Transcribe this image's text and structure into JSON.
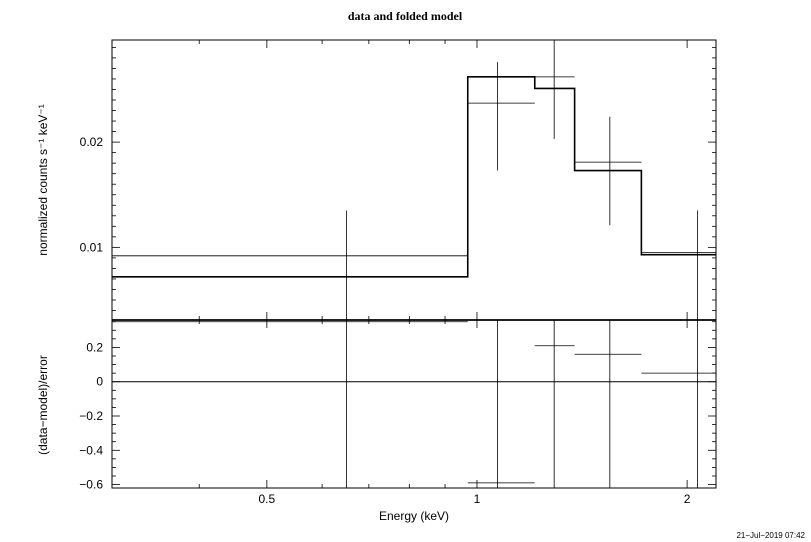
{
  "chart_data": [
    {
      "type": "step",
      "title": "data and folded model",
      "xlabel": "Energy (keV)",
      "ylabel": "normalized counts s⁻¹ keV⁻¹",
      "x_scale": "log",
      "xlim": [
        0.3,
        2.2
      ],
      "ylim": [
        0.0031,
        0.0297
      ],
      "y_ticks": [
        0.01,
        0.02
      ],
      "y_tick_labels": [
        "0.01",
        "0.02"
      ],
      "model": {
        "bins": [
          [
            0.3,
            0.97
          ],
          [
            0.97,
            1.21
          ],
          [
            1.21,
            1.38
          ],
          [
            1.38,
            1.72
          ],
          [
            1.72,
            2.2
          ]
        ],
        "values": [
          0.0072,
          0.0262,
          0.0251,
          0.0173,
          0.0093
        ]
      },
      "data": {
        "points": [
          {
            "x": 0.65,
            "xlo": 0.3,
            "xhi": 0.97,
            "y": 0.0092,
            "ylo": 0.0,
            "yhi": 0.0135
          },
          {
            "x": 1.07,
            "xlo": 0.97,
            "xhi": 1.21,
            "y": 0.0237,
            "ylo": 0.0173,
            "yhi": 0.0276
          },
          {
            "x": 1.29,
            "xlo": 1.21,
            "xhi": 1.38,
            "y": 0.0262,
            "ylo": 0.0203,
            "yhi": 0.0299
          },
          {
            "x": 1.55,
            "xlo": 1.38,
            "xhi": 1.72,
            "y": 0.0181,
            "ylo": 0.0121,
            "yhi": 0.0224
          },
          {
            "x": 2.07,
            "xlo": 1.72,
            "xhi": 2.2,
            "y": 0.0095,
            "ylo": 0.0,
            "yhi": 0.0135
          }
        ]
      }
    },
    {
      "type": "scatter",
      "xlabel": "Energy (keV)",
      "ylabel": "(data−model)/error",
      "x_scale": "log",
      "xlim": [
        0.3,
        2.2
      ],
      "ylim": [
        -0.62,
        0.36
      ],
      "x_ticks": [
        0.5,
        1,
        2
      ],
      "x_tick_labels": [
        "0.5",
        "1",
        "2"
      ],
      "y_ticks": [
        -0.6,
        -0.4,
        -0.2,
        0,
        0.2
      ],
      "y_tick_labels": [
        "−0.6",
        "−0.4",
        "−0.2",
        "0",
        "0.2"
      ],
      "zero_line": 0,
      "points": [
        {
          "x": 0.65,
          "xlo": 0.3,
          "xhi": 0.97,
          "y": 0.35,
          "ylo": -0.62,
          "yhi": 0.36
        },
        {
          "x": 1.07,
          "xlo": 0.97,
          "xhi": 1.21,
          "y": -0.59,
          "ylo": -0.62,
          "yhi": 0.36
        },
        {
          "x": 1.29,
          "xlo": 1.21,
          "xhi": 1.38,
          "y": 0.21,
          "ylo": -0.62,
          "yhi": 0.36
        },
        {
          "x": 1.55,
          "xlo": 1.38,
          "xhi": 1.72,
          "y": 0.16,
          "ylo": -0.62,
          "yhi": 0.36
        },
        {
          "x": 2.07,
          "xlo": 1.72,
          "xhi": 2.2,
          "y": 0.05,
          "ylo": -0.62,
          "yhi": 0.36
        }
      ]
    }
  ],
  "timestamp": "21−Jul−2019 07:42"
}
